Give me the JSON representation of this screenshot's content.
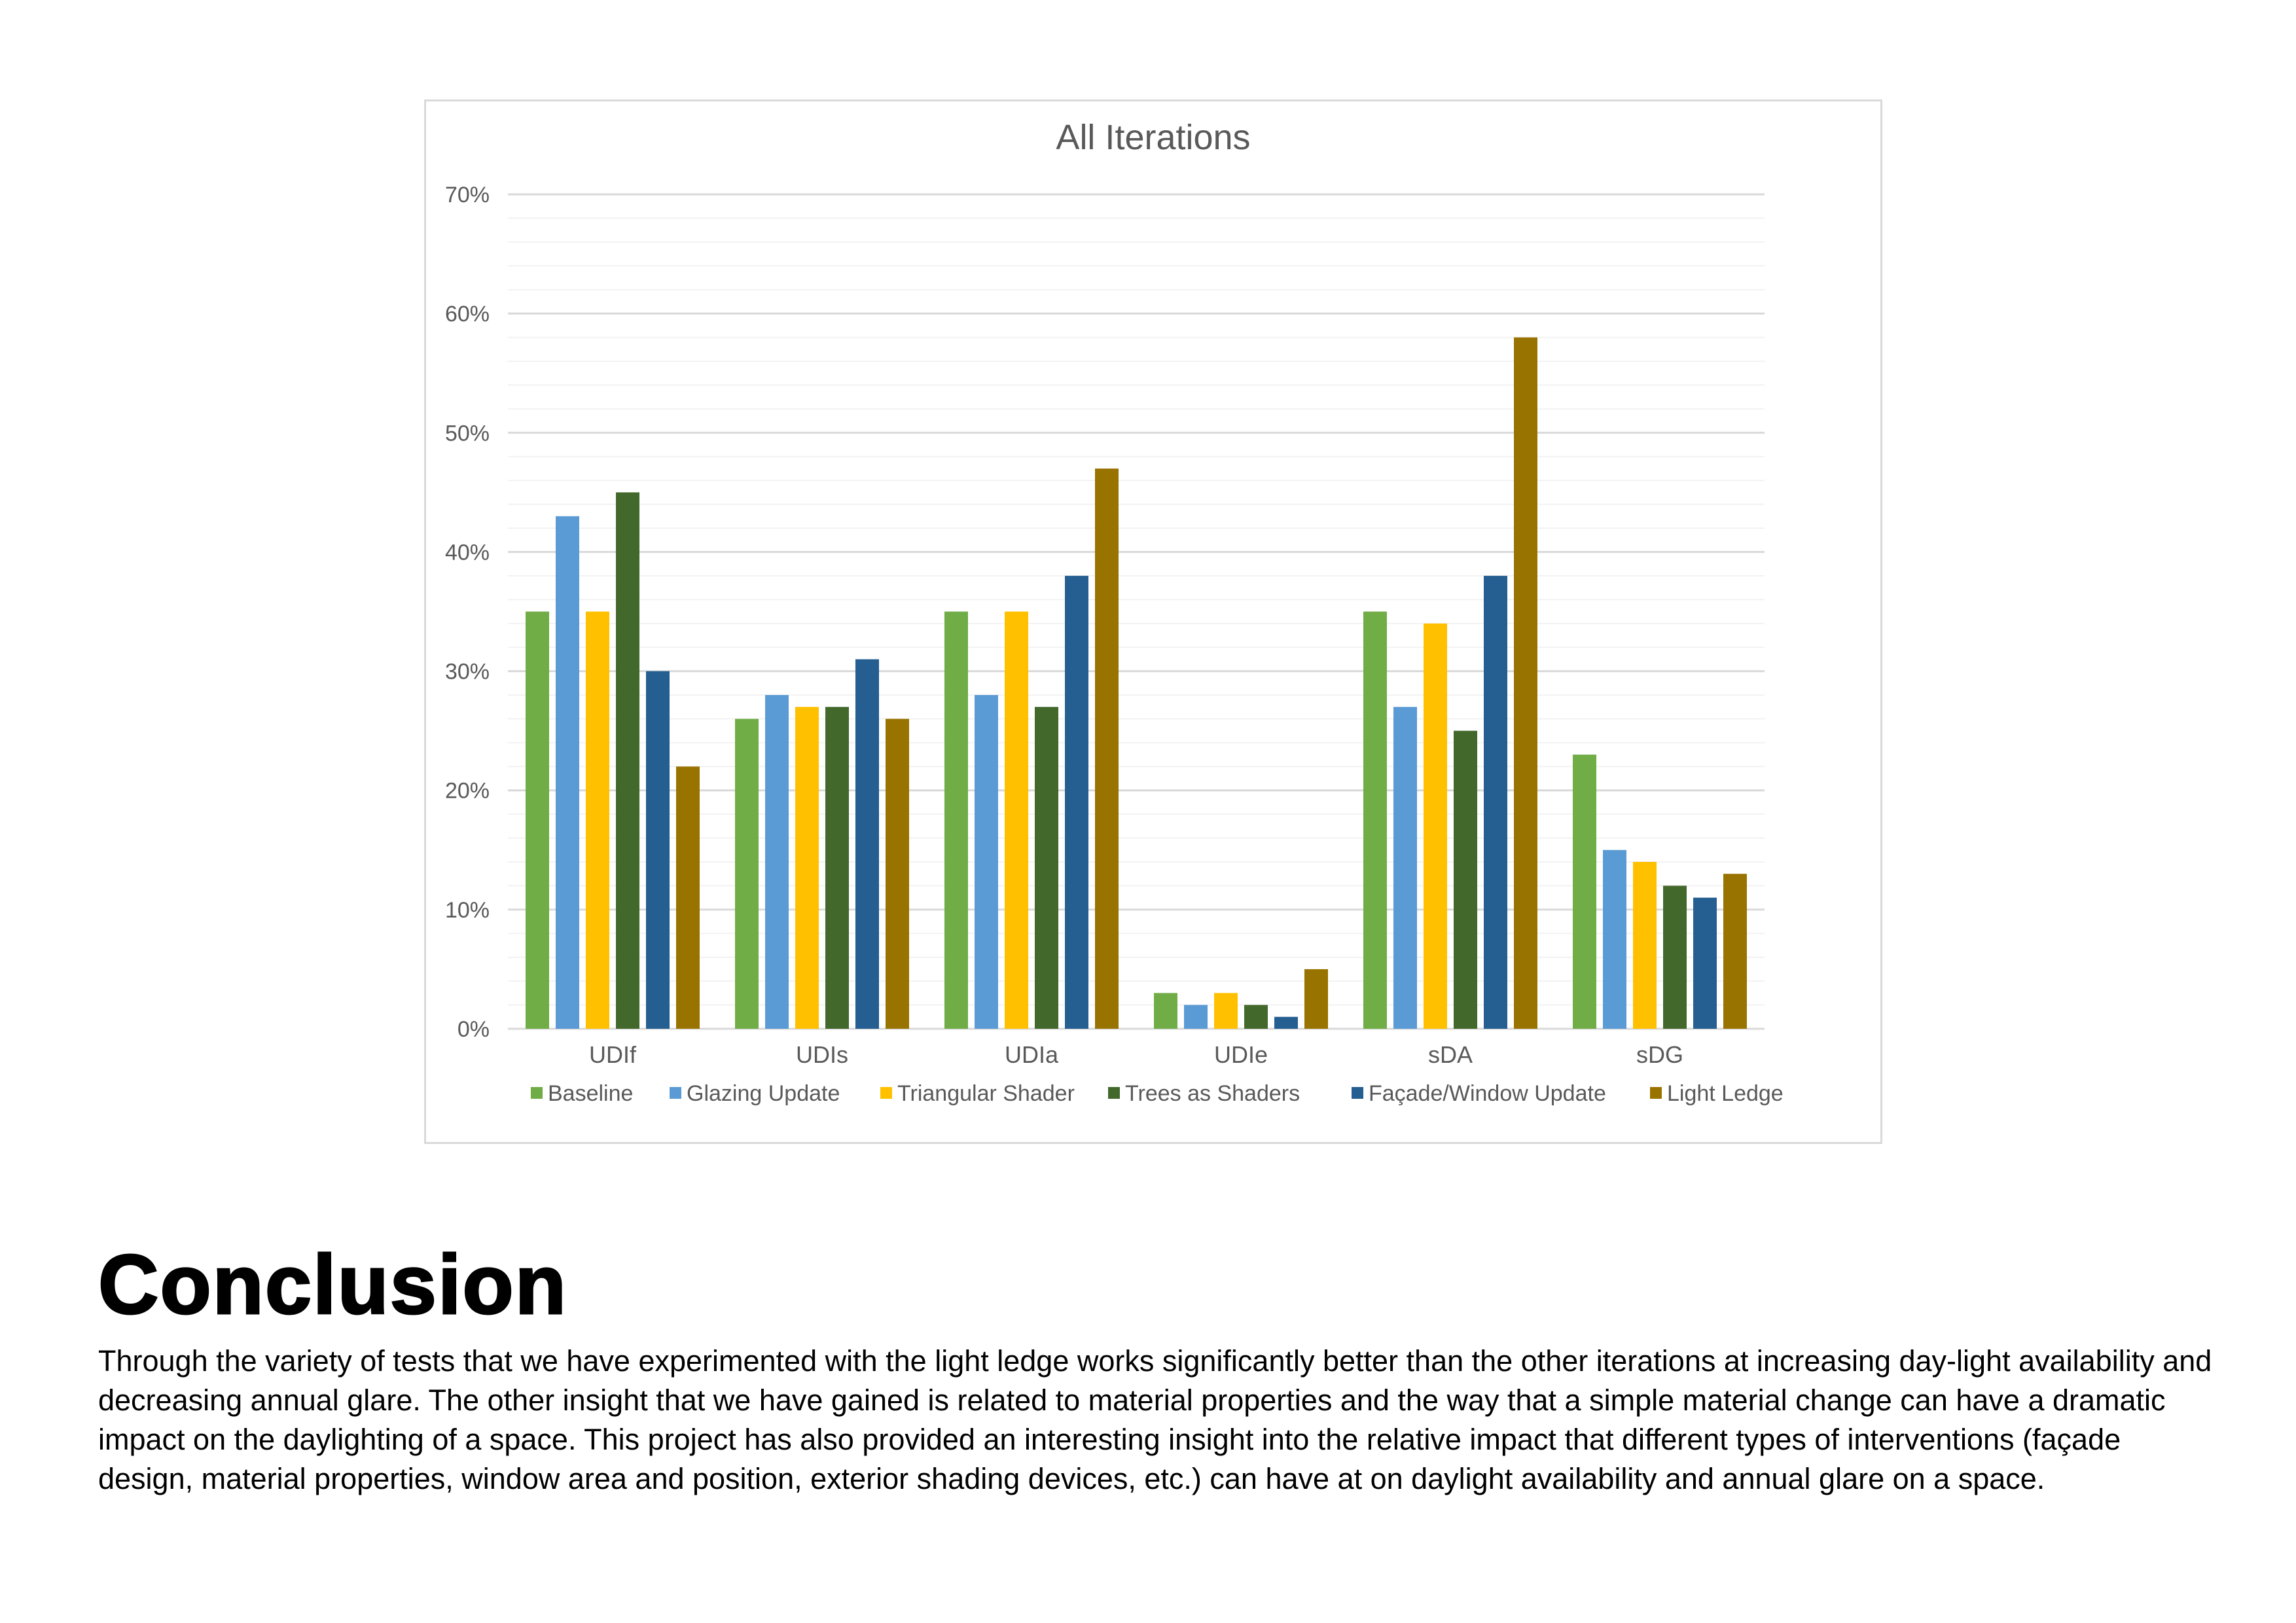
{
  "chart_data": {
    "type": "bar",
    "title": "All Iterations",
    "xlabel": "",
    "ylabel": "",
    "ylim": [
      0,
      70
    ],
    "y_ticks": [
      "0%",
      "10%",
      "20%",
      "30%",
      "40%",
      "50%",
      "60%",
      "70%"
    ],
    "grid": true,
    "legend_position": "bottom",
    "categories": [
      "UDIf",
      "UDIs",
      "UDIa",
      "UDIe",
      "sDA",
      "sDG"
    ],
    "series": [
      {
        "name": "Baseline",
        "color": "#70AD47",
        "values": [
          35,
          26,
          35,
          3,
          35,
          23
        ]
      },
      {
        "name": "Glazing Update",
        "color": "#5B9BD5",
        "values": [
          43,
          28,
          28,
          2,
          27,
          15
        ]
      },
      {
        "name": "Triangular Shader",
        "color": "#FFC000",
        "values": [
          35,
          27,
          35,
          3,
          34,
          14
        ]
      },
      {
        "name": "Trees as Shaders",
        "color": "#43682B",
        "values": [
          45,
          27,
          27,
          2,
          25,
          12
        ]
      },
      {
        "name": "Façade/Window Update",
        "color": "#255E91",
        "values": [
          30,
          31,
          38,
          1,
          38,
          11
        ]
      },
      {
        "name": "Light Ledge",
        "color": "#997300",
        "values": [
          22,
          26,
          47,
          5,
          58,
          13
        ]
      }
    ]
  },
  "conclusion": {
    "heading": "Conclusion",
    "body": "Through the variety of tests that we have experimented with the light ledge works significantly better than the other iterations at increasing day-light availability and decreasing annual glare. The other insight that we have gained is related to material properties and the way that a simple material change can have a dramatic impact on the daylighting of a space. This project has also provided an interesting insight into the relative impact that different types of interventions (façade design, material properties, window area and position, exterior shading devices, etc.) can have at on daylight availability and annual glare on a space."
  }
}
